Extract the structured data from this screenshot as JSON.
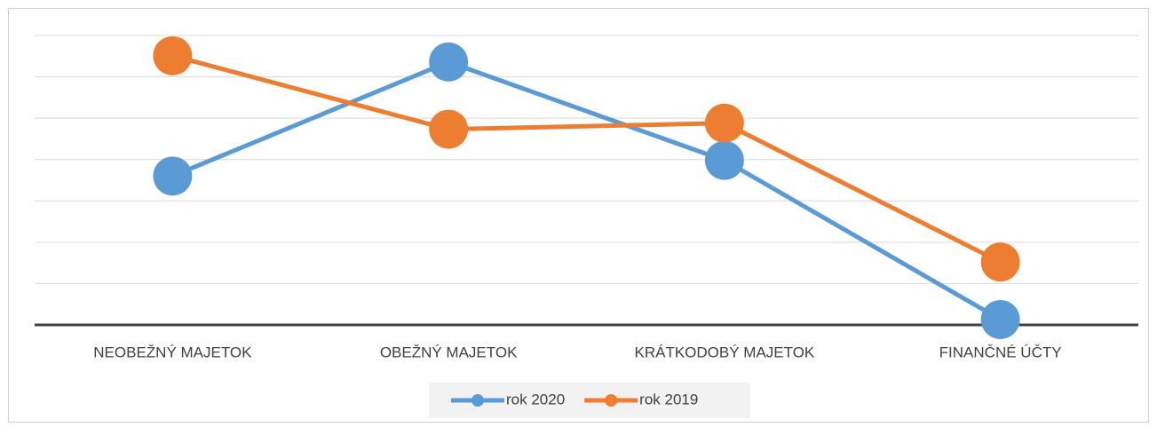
{
  "chart_data": {
    "type": "line",
    "categories": [
      "NEOBEŽNÝ MAJETOK",
      "OBEŽNÝ MAJETOK",
      "KRÁTKODOBÝ MAJETOK",
      "FINANČNÉ ÚČTY"
    ],
    "series": [
      {
        "name": "rok 2020",
        "color": "#5b9bd5",
        "values": [
          36.0,
          63.6,
          39.8,
          1.3
        ]
      },
      {
        "name": "rok 2019",
        "color": "#ed7d31",
        "values": [
          65.1,
          47.33,
          48.8,
          15.2
        ]
      }
    ],
    "ylim": [
      0,
      70
    ],
    "yticks": [
      0,
      10,
      20,
      30,
      40,
      50,
      60,
      70
    ],
    "grid": true,
    "legend": "bottom"
  }
}
